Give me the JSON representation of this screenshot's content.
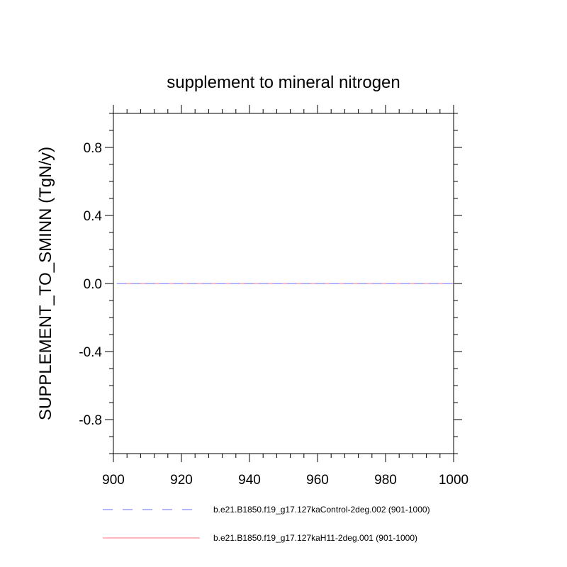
{
  "chart_data": {
    "type": "line",
    "title": "supplement to mineral nitrogen",
    "xlabel": "",
    "ylabel": "SUPPLEMENT_TO_SMINN  (TgN/y)",
    "xlim": [
      900,
      1000
    ],
    "ylim": [
      -1.0,
      1.0
    ],
    "x_ticks": [
      900,
      920,
      940,
      960,
      980,
      1000
    ],
    "x_tick_labels": [
      "900",
      "920",
      "940",
      "960",
      "980",
      "1000"
    ],
    "y_ticks": [
      0.8,
      0.4,
      0.0,
      -0.4,
      -0.8
    ],
    "y_tick_labels": [
      "0.8",
      "0.4",
      "0.0",
      "-0.4",
      "-0.8"
    ],
    "grid": false,
    "legend_position": "bottom",
    "x": [
      901,
      1000
    ],
    "series": [
      {
        "name": "b.e21.B1850.f19_g17.127kaControl-2deg.002 (901-1000)",
        "color": "#6a6aff",
        "line_style": "dashed",
        "values": [
          0.0,
          0.0
        ]
      },
      {
        "name": "b.e21.B1850.f19_g17.127kaH11-2deg.001 (901-1000)",
        "color": "#ff7080",
        "line_style": "solid",
        "values": [
          0.0,
          0.0
        ]
      }
    ]
  }
}
